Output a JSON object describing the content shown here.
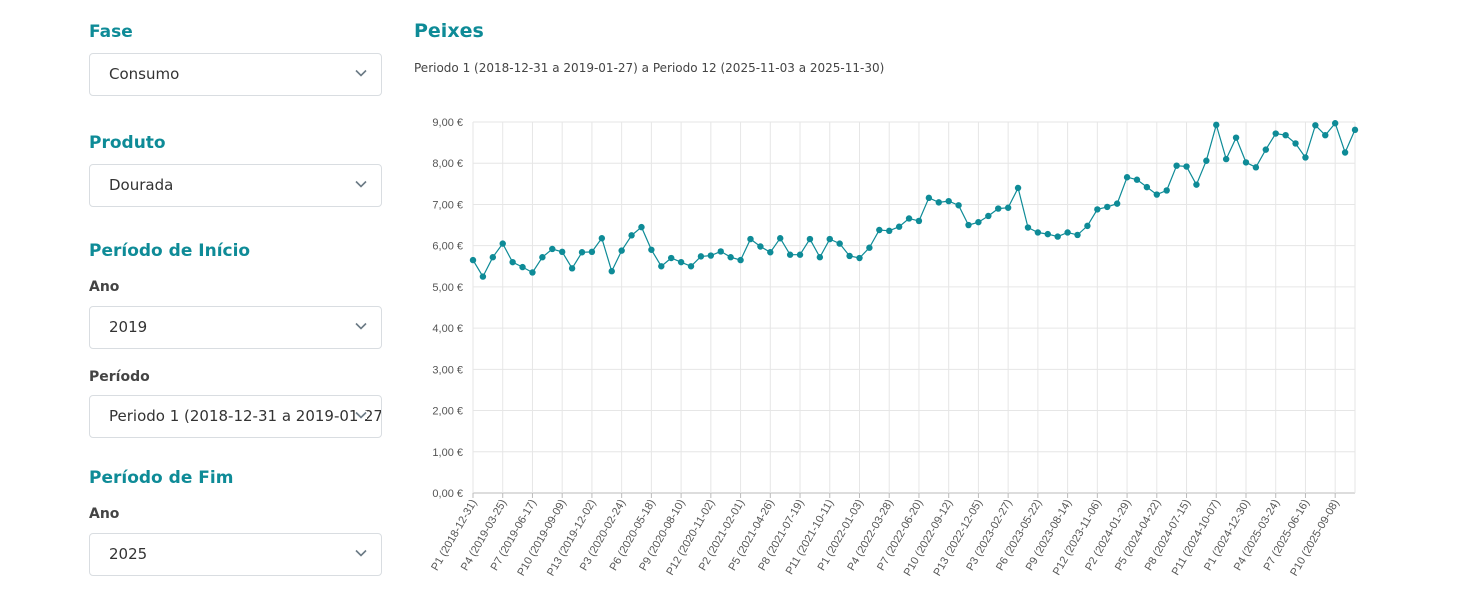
{
  "sidebar": {
    "fase": {
      "title": "Fase",
      "value": "Consumo"
    },
    "produto": {
      "title": "Produto",
      "value": "Dourada"
    },
    "inicio": {
      "title": "Período de Início",
      "ano_label": "Ano",
      "ano_value": "2019",
      "periodo_label": "Período",
      "periodo_value": "Periodo 1 (2018-12-31 a 2019-01-27)"
    },
    "fim": {
      "title": "Período de Fim",
      "ano_label": "Ano",
      "ano_value": "2025"
    }
  },
  "colors": {
    "accent": "#0e8b97",
    "grid": "#e6e6e6"
  },
  "chart_data": {
    "type": "line",
    "title": "Peixes",
    "subtitle": "Periodo 1 (2018-12-31 a 2019-01-27) a Periodo 12 (2025-11-03 a 2025-11-30)",
    "xlabel": "",
    "ylabel": "",
    "ylim": [
      0,
      9
    ],
    "yticks": [
      "0,00 €",
      "1,00 €",
      "2,00 €",
      "3,00 €",
      "4,00 €",
      "5,00 €",
      "6,00 €",
      "7,00 €",
      "8,00 €",
      "9,00 €"
    ],
    "xtick_labels": [
      "P1 (2018-12-31)",
      "P4 (2019-03-25)",
      "P7 (2019-06-17)",
      "P10 (2019-09-09)",
      "P13 (2019-12-02)",
      "P3 (2020-02-24)",
      "P6 (2020-05-18)",
      "P9 (2020-08-10)",
      "P12 (2020-11-02)",
      "P2 (2021-02-01)",
      "P5 (2021-04-26)",
      "P8 (2021-07-19)",
      "P11 (2021-10-11)",
      "P1 (2022-01-03)",
      "P4 (2022-03-28)",
      "P7 (2022-06-20)",
      "P10 (2022-09-12)",
      "P13 (2022-12-05)",
      "P3 (2023-02-27)",
      "P6 (2023-05-22)",
      "P9 (2023-08-14)",
      "P12 (2023-11-06)",
      "P2 (2024-01-29)",
      "P5 (2024-04-22)",
      "P8 (2024-07-15)",
      "P11 (2024-10-07)",
      "P1 (2024-12-30)",
      "P4 (2025-03-24)",
      "P7 (2025-06-16)",
      "P10 (2025-09-08)"
    ],
    "tick_every": 3,
    "grid": true,
    "series": [
      {
        "name": "Dourada",
        "values": [
          5.65,
          5.25,
          5.72,
          6.05,
          5.6,
          5.48,
          5.35,
          5.72,
          5.92,
          5.85,
          5.45,
          5.84,
          5.85,
          6.18,
          5.38,
          5.88,
          6.25,
          6.45,
          5.9,
          5.5,
          5.7,
          5.6,
          5.5,
          5.74,
          5.76,
          5.86,
          5.72,
          5.65,
          6.16,
          5.98,
          5.84,
          6.18,
          5.78,
          5.78,
          6.16,
          5.72,
          6.16,
          6.05,
          5.75,
          5.7,
          5.95,
          6.38,
          6.36,
          6.46,
          6.66,
          6.6,
          7.16,
          7.05,
          7.08,
          6.98,
          6.5,
          6.57,
          6.72,
          6.9,
          6.92,
          7.4,
          6.44,
          6.32,
          6.28,
          6.22,
          6.32,
          6.26,
          6.48,
          6.88,
          6.94,
          7.02,
          7.66,
          7.6,
          7.42,
          7.24,
          7.34,
          7.94,
          7.92,
          7.48,
          8.06,
          8.93,
          8.1,
          8.62,
          8.02,
          7.9,
          8.33,
          8.72,
          8.68,
          8.48,
          8.14,
          8.92,
          8.68,
          8.97,
          8.26,
          8.81
        ]
      }
    ]
  }
}
